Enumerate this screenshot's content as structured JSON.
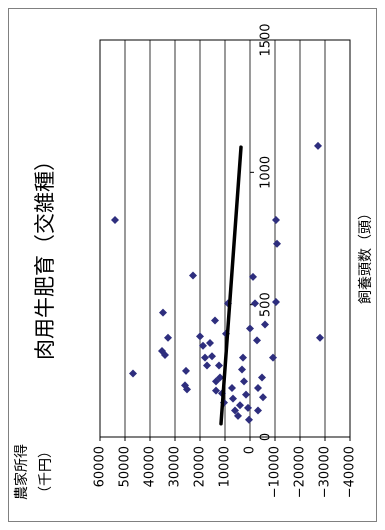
{
  "chart_data": {
    "type": "scatter",
    "title": "肉用牛肥育（交雑種）",
    "xlabel": "飼養頭数（頭）",
    "ylabel": [
      "農家所得",
      "（千円）"
    ],
    "xlim": [
      0,
      1500
    ],
    "ylim": [
      -40000,
      60000
    ],
    "grid": true,
    "marker": "diamond",
    "colors": {
      "marker": "#2e2e7e",
      "trendline": "#000000",
      "gridline": "#000000",
      "frame": "#808080"
    },
    "xticks": [
      {
        "value": 0,
        "label": "0"
      },
      {
        "value": 500,
        "label": "500"
      },
      {
        "value": 1000,
        "label": "1000"
      },
      {
        "value": 1500,
        "label": "1500"
      }
    ],
    "yticks": [
      {
        "value": 60000,
        "label": "60000"
      },
      {
        "value": 50000,
        "label": "50000"
      },
      {
        "value": 40000,
        "label": "40000"
      },
      {
        "value": 30000,
        "label": "30000"
      },
      {
        "value": 20000,
        "label": "20000"
      },
      {
        "value": 10000,
        "label": "10000"
      },
      {
        "value": 0,
        "label": "0"
      },
      {
        "value": -10000,
        "label": "−10000"
      },
      {
        "value": -20000,
        "label": "−20000"
      },
      {
        "value": -30000,
        "label": "−30000"
      },
      {
        "value": -40000,
        "label": "−40000"
      }
    ],
    "points": [
      [
        820,
        54000
      ],
      [
        240,
        46800
      ],
      [
        470,
        34800
      ],
      [
        325,
        35200
      ],
      [
        310,
        34000
      ],
      [
        375,
        32800
      ],
      [
        250,
        25600
      ],
      [
        195,
        26000
      ],
      [
        180,
        25200
      ],
      [
        610,
        22800
      ],
      [
        380,
        20000
      ],
      [
        345,
        18800
      ],
      [
        300,
        18000
      ],
      [
        270,
        17200
      ],
      [
        355,
        16000
      ],
      [
        305,
        15200
      ],
      [
        440,
        14000
      ],
      [
        210,
        13600
      ],
      [
        175,
        13600
      ],
      [
        270,
        12400
      ],
      [
        225,
        12000
      ],
      [
        165,
        11200
      ],
      [
        130,
        10400
      ],
      [
        390,
        9600
      ],
      [
        505,
        8800
      ],
      [
        185,
        7200
      ],
      [
        145,
        6800
      ],
      [
        100,
        6000
      ],
      [
        80,
        4800
      ],
      [
        120,
        4000
      ],
      [
        255,
        3200
      ],
      [
        300,
        2800
      ],
      [
        210,
        2400
      ],
      [
        160,
        1600
      ],
      [
        110,
        800
      ],
      [
        65,
        400
      ],
      [
        410,
        0
      ],
      [
        605,
        -1200
      ],
      [
        505,
        -2000
      ],
      [
        365,
        -2800
      ],
      [
        185,
        -3200
      ],
      [
        100,
        -3200
      ],
      [
        225,
        -4800
      ],
      [
        150,
        -5200
      ],
      [
        425,
        -6000
      ],
      [
        300,
        -9200
      ],
      [
        820,
        -10400
      ],
      [
        730,
        -10800
      ],
      [
        510,
        -10400
      ],
      [
        1100,
        -27200
      ],
      [
        375,
        -28000
      ]
    ],
    "trendline": {
      "type": "linear",
      "x": [
        50,
        1095
      ],
      "y": [
        11600,
        3600
      ]
    }
  }
}
